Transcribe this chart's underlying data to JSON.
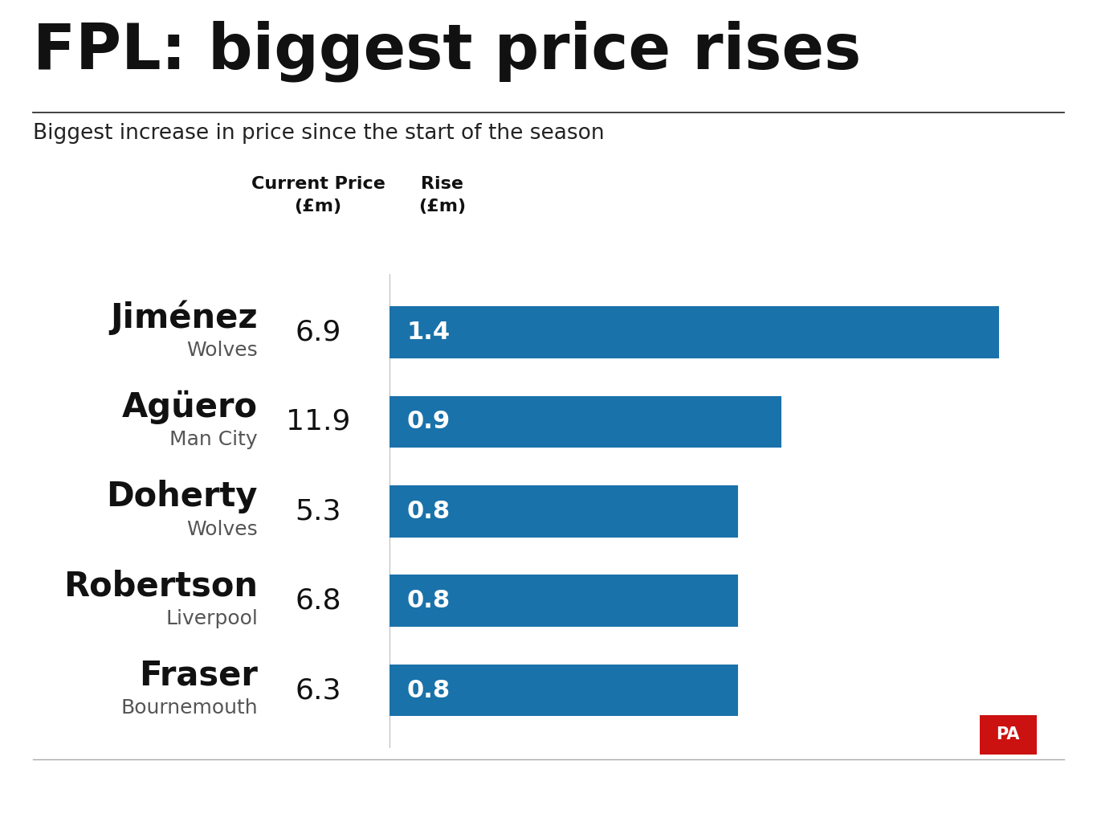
{
  "title": "FPL: biggest price rises",
  "subtitle": "Biggest increase in price since the start of the season",
  "col_header_price": "Current Price\n(£m)",
  "col_header_rise": "Rise\n(£m)",
  "players": [
    "Jiménez",
    "Agüero",
    "Doherty",
    "Robertson",
    "Fraser"
  ],
  "teams": [
    "Wolves",
    "Man City",
    "Wolves",
    "Liverpool",
    "Bournemouth"
  ],
  "current_prices": [
    "6.9",
    "11.9",
    "5.3",
    "6.8",
    "6.3"
  ],
  "rises": [
    1.4,
    0.9,
    0.8,
    0.8,
    0.8
  ],
  "bar_color": "#1a72aa",
  "bg_color": "#ffffff",
  "title_color": "#111111",
  "subtitle_color": "#222222",
  "player_name_color": "#111111",
  "team_name_color": "#555555",
  "bar_label_color": "#ffffff",
  "pa_bg_color": "#cc1111",
  "pa_text_color": "#ffffff",
  "xlim_max": 1.55,
  "bar_height": 0.58,
  "title_fontsize": 56,
  "subtitle_fontsize": 19,
  "player_fontsize": 30,
  "team_fontsize": 18,
  "price_fontsize": 26,
  "bar_label_fontsize": 22,
  "col_header_fontsize": 16
}
